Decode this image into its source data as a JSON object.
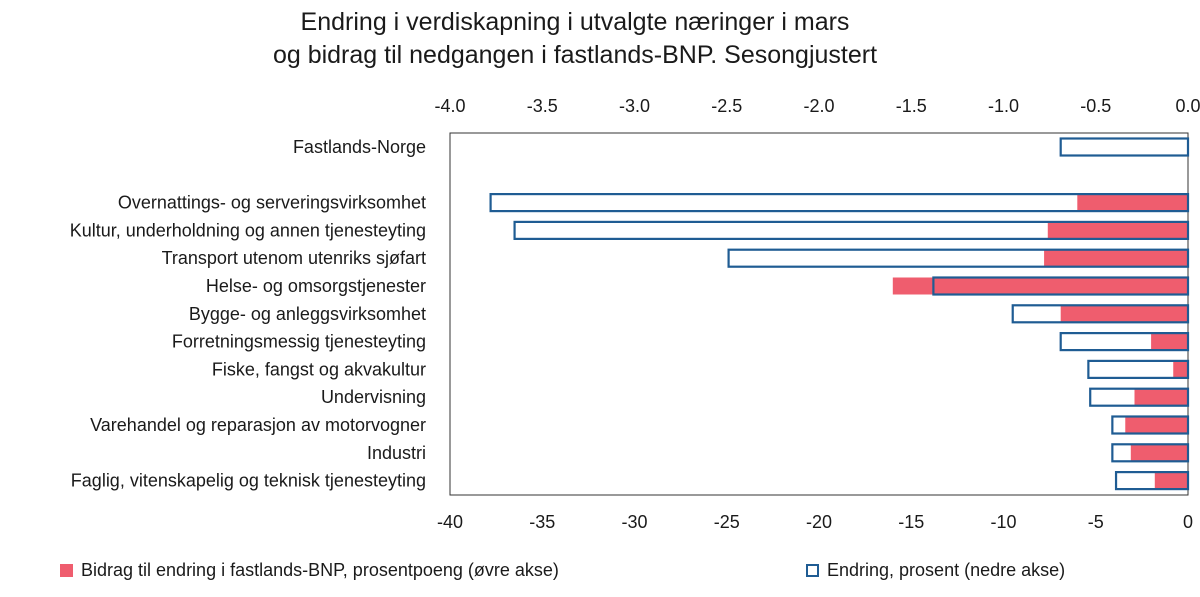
{
  "chart_data": {
    "type": "bar",
    "orientation": "horizontal",
    "title_lines": [
      "Endring i verdiskapning i utvalgte næringer i mars",
      "og bidrag til nedgangen i fastlands-BNP. Sesongjustert"
    ],
    "categories": [
      "Fastlands-Norge",
      "",
      "Overnattings- og serveringsvirksomhet",
      "Kultur, underholdning og annen tjenesteyting",
      "Transport utenom utenriks sjøfart",
      "Helse- og omsorgstjenester",
      "Bygge- og anleggsvirksomhet",
      "Forretningsmessig tjenesteyting",
      "Fiske, fangst og akvakultur",
      "Undervisning",
      "Varehandel og reparasjon av motorvogner",
      "Industri",
      "Faglig, vitenskapelig og teknisk tjenesteyting"
    ],
    "series": [
      {
        "name": "Bidrag til endring i fastlands-BNP, prosentpoeng (øvre akse)",
        "axis": "top",
        "style": "filled",
        "color": "#ef5d6e",
        "values": [
          null,
          null,
          -0.6,
          -0.76,
          -0.78,
          -1.6,
          -0.69,
          -0.2,
          -0.08,
          -0.29,
          -0.34,
          -0.31,
          -0.18
        ]
      },
      {
        "name": "Endring, prosent (nedre akse)",
        "axis": "bottom",
        "style": "outline",
        "color": "#1f5c93",
        "values": [
          -6.9,
          null,
          -37.8,
          -36.5,
          -24.9,
          -13.8,
          -9.5,
          -6.9,
          -5.4,
          -5.3,
          -4.1,
          -4.1,
          -3.9
        ]
      }
    ],
    "x_top": {
      "ticks": [
        "-4.0",
        "-3.5",
        "-3.0",
        "-2.5",
        "-2.0",
        "-1.5",
        "-1.0",
        "-0.5",
        "0.0"
      ],
      "range": [
        -4,
        0
      ]
    },
    "x_bottom": {
      "ticks": [
        "-40",
        "-35",
        "-30",
        "-25",
        "-20",
        "-15",
        "-10",
        "-5",
        "0"
      ],
      "range": [
        -40,
        0
      ]
    },
    "grid": false,
    "legend_position": "bottom"
  },
  "legend": {
    "item1": "Bidrag til endring i fastlands-BNP, prosentpoeng (øvre akse)",
    "item2": "Endring, prosent (nedre akse)"
  }
}
